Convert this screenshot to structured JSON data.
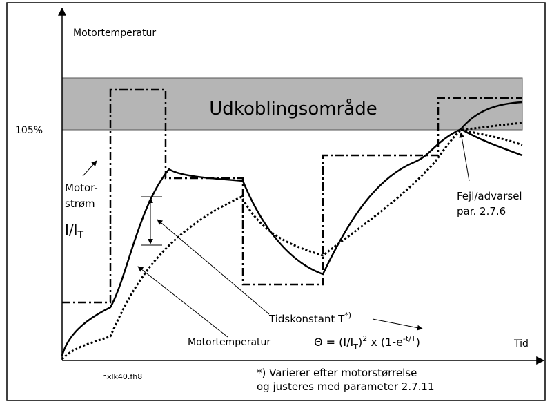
{
  "y_axis_label": "Motortemperatur",
  "trip_zone_label": "Udkoblingsområde",
  "level_label": "105%",
  "current_label": {
    "line1": "Motor-",
    "line2": "strøm",
    "ratio": "I/I",
    "ratio_sub": "T"
  },
  "fault_label": {
    "line1": "Fejl/advarsel",
    "line2": "par. 2.7.6"
  },
  "time_constant_label": {
    "text": "Tidskonstant T",
    "sup": "*)"
  },
  "temperature_label": "Motortemperatur",
  "formula": {
    "part1": "Θ = (I/I",
    "sub1": "T",
    "part2": ")",
    "sup1": "2",
    "part3": " x (1-e",
    "sup2": "-t/T",
    "part4": ")"
  },
  "x_axis_label": "Tid",
  "figure_id": "nxlk40.fh8",
  "footnote": {
    "line1": "*) Varierer efter motorstørrelse",
    "line2": "og justeres med parameter 2.7.11"
  }
}
